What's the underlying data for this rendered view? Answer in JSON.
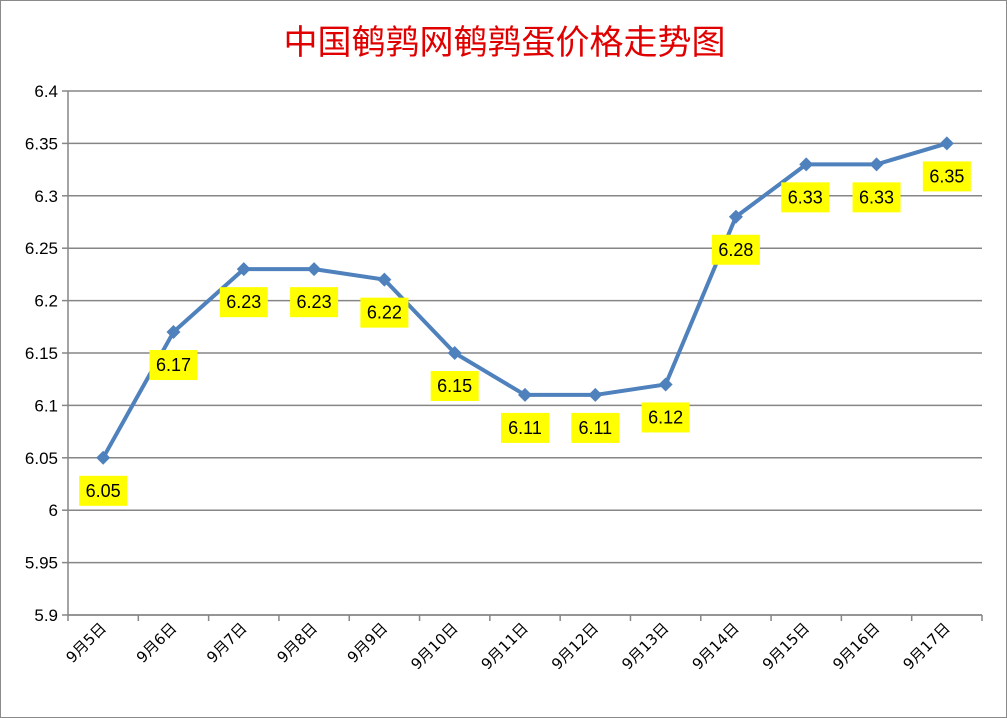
{
  "chart_data": {
    "type": "line",
    "title": "中国鹌鹑网鹌鹑蛋价格走势图",
    "categories": [
      "9月5日",
      "9月6日",
      "9月7日",
      "9月8日",
      "9月9日",
      "9月10日",
      "9月11日",
      "9月12日",
      "9月13日",
      "9月14日",
      "9月15日",
      "9月16日",
      "9月17日"
    ],
    "series": [
      {
        "values": [
          6.05,
          6.17,
          6.23,
          6.23,
          6.22,
          6.15,
          6.11,
          6.11,
          6.12,
          6.28,
          6.33,
          6.33,
          6.35
        ]
      }
    ],
    "data_labels": [
      "6.05",
      "6.17",
      "6.23",
      "6.23",
      "6.22",
      "6.15",
      "6.11",
      "6.11",
      "6.12",
      "6.28",
      "6.33",
      "6.33",
      "6.35"
    ],
    "y_ticks": [
      "6.4",
      "6.35",
      "6.3",
      "6.25",
      "6.2",
      "6.15",
      "6.1",
      "6.05",
      "6",
      "5.95",
      "5.9"
    ],
    "ylim": [
      5.9,
      6.4
    ],
    "grid": "horizontal",
    "legend": "none",
    "colors": {
      "line": "#4f81bd",
      "label_bg": "#ffff00",
      "title": "#e00000",
      "grid": "#868686"
    }
  }
}
